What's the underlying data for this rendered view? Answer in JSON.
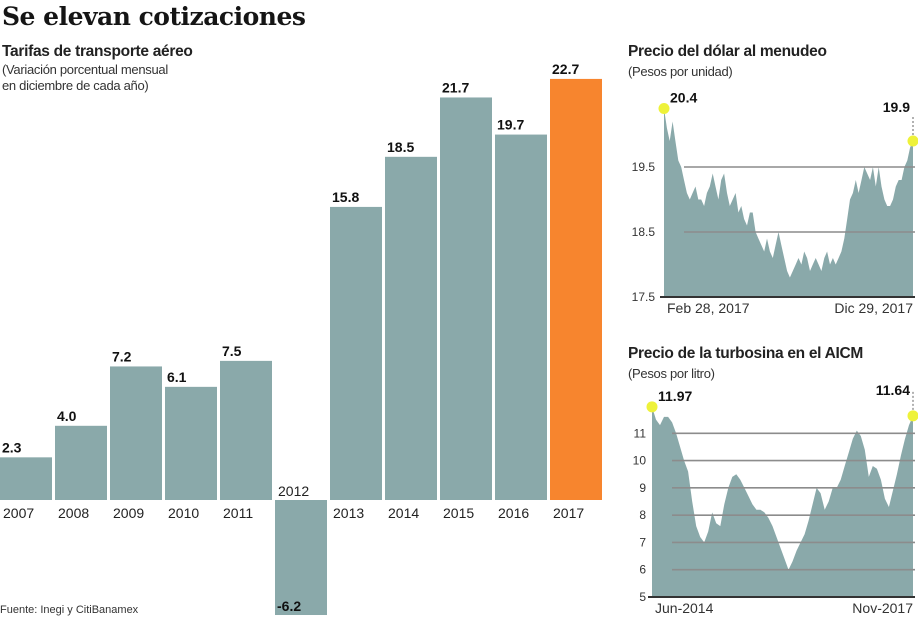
{
  "header": {
    "title": "Se elevan cotizaciones",
    "source": "Fuente: Inegi y CitiBanamex"
  },
  "colors": {
    "bar": "#8aa9aa",
    "highlight_bar": "#f7852e",
    "area": "#8aa9aa",
    "gridline": "#8c8c8c",
    "marker": "#eef23a"
  },
  "chart_data": [
    {
      "type": "bar",
      "title": "Tarifas de transporte aéreo",
      "subtitle_lines": [
        "(Variación porcentual mensual",
        "en diciembre de cada año)"
      ],
      "xlabel": "",
      "ylabel": "",
      "categories": [
        "2007",
        "2008",
        "2009",
        "2010",
        "2011",
        "2012",
        "2013",
        "2014",
        "2015",
        "2016",
        "2017"
      ],
      "values": [
        2.3,
        4.0,
        7.2,
        6.1,
        7.5,
        -6.2,
        15.8,
        18.5,
        21.7,
        19.7,
        22.7
      ],
      "value_labels": [
        "2.3",
        "4.0",
        "7.2",
        "6.1",
        "7.5",
        "-6.2",
        "15.8",
        "18.5",
        "21.7",
        "19.7",
        "22.7"
      ],
      "highlight_category": "2017",
      "ylim": [
        -6.2,
        22.7
      ],
      "grid": false,
      "legend": "none"
    },
    {
      "type": "area",
      "title": "Precio del dólar al menudeo",
      "subtitle": "(Pesos por unidad)",
      "x_labels": [
        "Feb 28, 2017",
        "Dic 29, 2017"
      ],
      "yticks": [
        17.5,
        18.5,
        19.5
      ],
      "ytick_labels": [
        "17.5",
        "18.5",
        "19.5"
      ],
      "ylim": [
        17.5,
        20.5
      ],
      "grid": true,
      "annotations": [
        {
          "label": "20.4",
          "position": "start",
          "value": 20.4
        },
        {
          "label": "19.9",
          "position": "end",
          "value": 19.9
        }
      ],
      "series": [
        {
          "name": "Precio del dólar",
          "values": [
            20.4,
            20.1,
            19.9,
            20.2,
            19.9,
            19.6,
            19.5,
            19.3,
            19.1,
            19.0,
            19.1,
            19.2,
            19.0,
            19.0,
            18.9,
            19.1,
            19.2,
            19.4,
            19.2,
            19.0,
            19.3,
            19.4,
            19.1,
            18.9,
            19.0,
            19.1,
            18.8,
            18.9,
            18.7,
            18.6,
            18.8,
            18.8,
            18.5,
            18.4,
            18.3,
            18.2,
            18.4,
            18.2,
            18.1,
            18.3,
            18.5,
            18.3,
            18.1,
            17.9,
            17.8,
            17.9,
            18.0,
            18.1,
            18.0,
            18.2,
            18.1,
            17.9,
            18.0,
            18.1,
            18.0,
            17.9,
            18.1,
            18.2,
            18.0,
            18.1,
            18.0,
            18.1,
            18.2,
            18.4,
            18.7,
            19.0,
            19.1,
            19.3,
            19.1,
            19.3,
            19.5,
            19.4,
            19.3,
            19.5,
            19.2,
            19.5,
            19.2,
            19.0,
            18.9,
            18.9,
            19.0,
            19.2,
            19.3,
            19.3,
            19.5,
            19.6,
            19.8,
            19.9
          ]
        }
      ]
    },
    {
      "type": "area",
      "title": "Precio de la turbosina en el AICM",
      "subtitle": "(Pesos por litro)",
      "x_labels": [
        "Jun-2014",
        "Nov-2017"
      ],
      "yticks": [
        5,
        6,
        7,
        8,
        9,
        10,
        11
      ],
      "ytick_labels": [
        "5",
        "6",
        "7",
        "8",
        "9",
        "10",
        "11"
      ],
      "ylim": [
        5,
        12
      ],
      "grid": true,
      "annotations": [
        {
          "label": "11.97",
          "position": "start",
          "value": 11.97
        },
        {
          "label": "11.64",
          "position": "end",
          "value": 11.64
        }
      ],
      "series": [
        {
          "name": "Precio de la turbosina",
          "values": [
            11.97,
            11.5,
            11.3,
            11.6,
            11.6,
            11.4,
            11.0,
            10.5,
            10.0,
            9.6,
            8.5,
            7.6,
            7.2,
            7.0,
            7.4,
            8.1,
            7.7,
            7.6,
            8.4,
            9.0,
            9.4,
            9.5,
            9.3,
            9.0,
            8.7,
            8.4,
            8.2,
            8.2,
            8.1,
            7.9,
            7.6,
            7.2,
            6.8,
            6.4,
            6.0,
            6.3,
            6.7,
            7.0,
            7.3,
            7.8,
            8.4,
            9.0,
            8.8,
            8.2,
            8.5,
            9.0,
            9.0,
            9.3,
            9.8,
            10.3,
            10.8,
            11.1,
            10.9,
            10.4,
            9.4,
            9.8,
            9.7,
            9.3,
            8.6,
            8.3,
            8.9,
            9.5,
            10.2,
            10.8,
            11.3,
            11.64
          ]
        }
      ]
    }
  ]
}
